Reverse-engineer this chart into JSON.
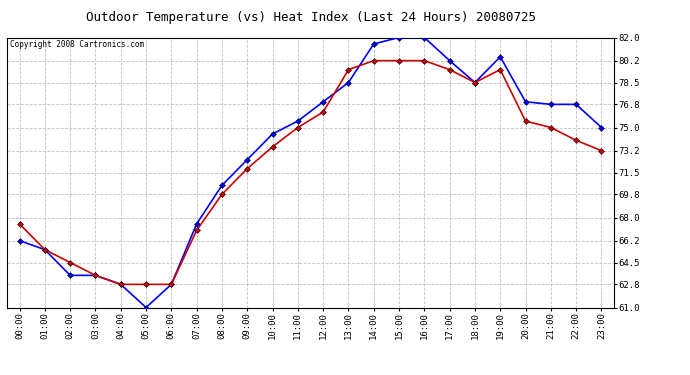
{
  "title": "Outdoor Temperature (vs) Heat Index (Last 24 Hours) 20080725",
  "copyright": "Copyright 2008 Cartronics.com",
  "hours": [
    "00:00",
    "01:00",
    "02:00",
    "03:00",
    "04:00",
    "05:00",
    "06:00",
    "07:00",
    "08:00",
    "09:00",
    "10:00",
    "11:00",
    "12:00",
    "13:00",
    "14:00",
    "15:00",
    "16:00",
    "17:00",
    "18:00",
    "19:00",
    "20:00",
    "21:00",
    "22:00",
    "23:00"
  ],
  "blue_data": [
    66.2,
    65.5,
    63.5,
    63.5,
    62.8,
    61.0,
    62.8,
    67.5,
    70.5,
    72.5,
    74.5,
    75.5,
    77.0,
    78.5,
    81.5,
    82.0,
    82.0,
    80.2,
    78.5,
    80.5,
    77.0,
    76.8,
    76.8,
    75.0
  ],
  "red_data": [
    67.5,
    65.5,
    64.5,
    63.5,
    62.8,
    62.8,
    62.8,
    67.0,
    69.8,
    71.8,
    73.5,
    75.0,
    76.2,
    79.5,
    80.2,
    80.2,
    80.2,
    79.5,
    78.5,
    79.5,
    75.5,
    75.0,
    74.0,
    73.2
  ],
  "blue_color": "#0000FF",
  "red_color": "#CC0000",
  "bg_color": "#FFFFFF",
  "grid_color": "#C0C0C0",
  "ylim_min": 61.0,
  "ylim_max": 82.0,
  "yticks": [
    61.0,
    62.8,
    64.5,
    66.2,
    68.0,
    69.8,
    71.5,
    73.2,
    75.0,
    76.8,
    78.5,
    80.2,
    82.0
  ],
  "title_fontsize": 9,
  "copyright_fontsize": 5.5,
  "tick_fontsize": 6.5,
  "marker_size": 3
}
